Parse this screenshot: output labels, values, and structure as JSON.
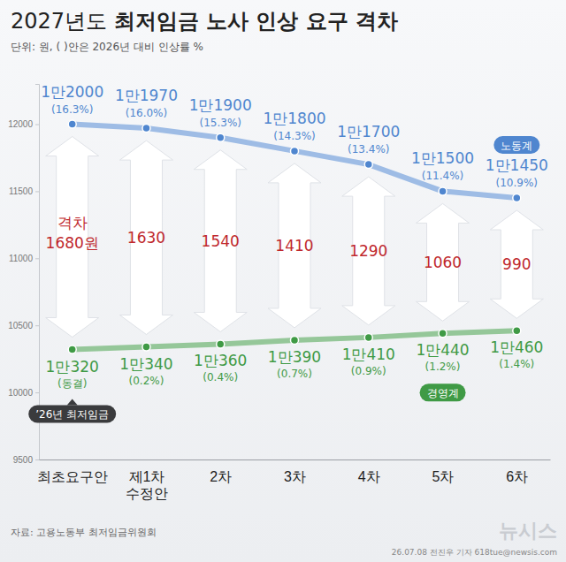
{
  "chart_data": {
    "type": "line",
    "title": "2027년도 최저임금 노사 인상 요구 격차",
    "subtitle": "단위: 원, ( )안은 2026년 대비 인상률 %",
    "categories": [
      "최초요구안",
      "제1차 수정안",
      "2차",
      "3차",
      "4차",
      "5차",
      "6차"
    ],
    "ylim": [
      9500,
      12300
    ],
    "yticks": [
      9500,
      10000,
      10500,
      11000,
      11500,
      12000
    ],
    "grid": false,
    "data_labels": true,
    "marker": "circle",
    "series": [
      {
        "name": "노동계",
        "color": "#4f86cf",
        "values": [
          12000,
          11970,
          11900,
          11800,
          11700,
          11500,
          11450
        ],
        "value_labels": [
          "1만2000",
          "1만1970",
          "1만1900",
          "1만1800",
          "1만1700",
          "1만1500",
          "1만1450"
        ],
        "change_labels": [
          "(16.3%)",
          "(16.0%)",
          "(15.3%)",
          "(14.3%)",
          "(13.4%)",
          "(11.4%)",
          "(10.9%)"
        ]
      },
      {
        "name": "경영계",
        "color": "#3f9a45",
        "values": [
          10320,
          10340,
          10360,
          10390,
          10410,
          10440,
          10460
        ],
        "value_labels": [
          "1만320",
          "1만340",
          "1만360",
          "1만390",
          "1만410",
          "1만440",
          "1만460"
        ],
        "change_labels": [
          "(동결)",
          "(0.2%)",
          "(0.4%)",
          "(0.7%)",
          "(0.9%)",
          "(1.2%)",
          "(1.4%)"
        ]
      }
    ],
    "gap": {
      "name": "격차",
      "color": "#c0282d",
      "values": [
        1680,
        1630,
        1540,
        1410,
        1290,
        1060,
        990
      ],
      "value_labels": [
        "1680원",
        "1630",
        "1540",
        "1410",
        "1290",
        "1060",
        "990"
      ]
    },
    "annotation": "’26년 최저임금",
    "source": "자료: 고용노동부 최저임금위원회",
    "credit": "26.07.08 전진우 기자 618tue@newsis.com",
    "logo": "뉴시스"
  }
}
